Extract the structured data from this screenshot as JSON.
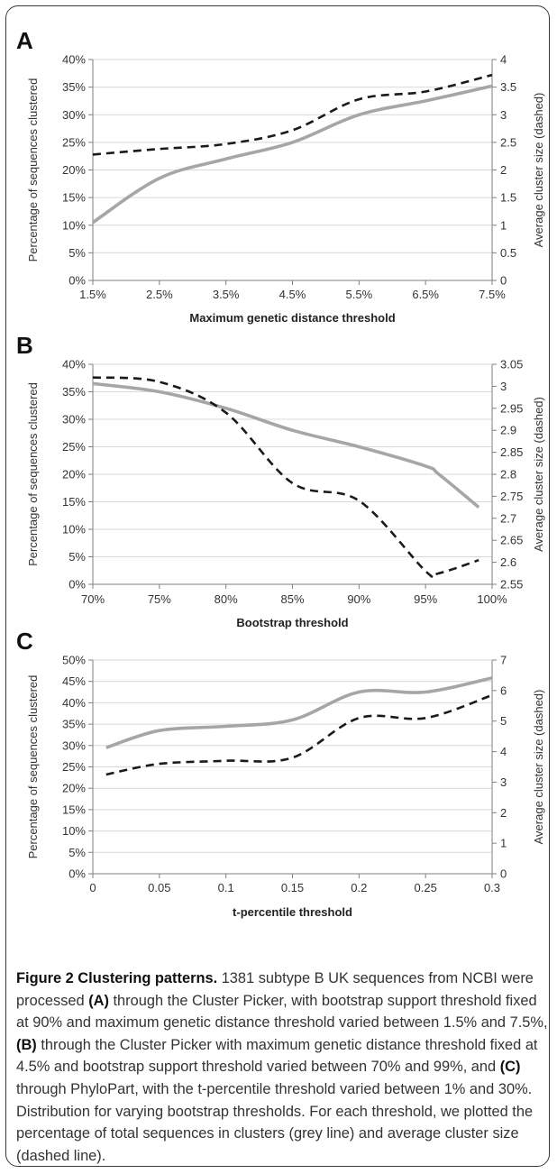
{
  "colors": {
    "grey_line": "#a6a6a6",
    "dashed_line": "#1a1a1a",
    "axis": "#7f7f7f",
    "grid": "#d9d9d9"
  },
  "chart_data": [
    {
      "panel_label": "A",
      "type": "line",
      "xlabel": "Maximum genetic distance threshold",
      "ylabel_left": "Percentage of sequences clustered",
      "ylabel_right": "Average cluster size (dashed)",
      "x": [
        1.5,
        2.5,
        3.5,
        4.5,
        5.5,
        6.5,
        7.5
      ],
      "x_ticks": [
        "1.5%",
        "2.5%",
        "3.5%",
        "4.5%",
        "5.5%",
        "6.5%",
        "7.5%"
      ],
      "y_left_ticks": [
        "0%",
        "5%",
        "10%",
        "15%",
        "20%",
        "25%",
        "30%",
        "35%",
        "40%"
      ],
      "y_right_ticks": [
        "0",
        "0.5",
        "1",
        "1.5",
        "2",
        "2.5",
        "3",
        "3.5",
        "4"
      ],
      "ylim_left": [
        0,
        40
      ],
      "ylim_right": [
        0,
        4
      ],
      "grid": true,
      "series": [
        {
          "axis": "left",
          "style": "solid",
          "values": [
            10.5,
            18.5,
            22.0,
            25.0,
            30.0,
            32.5,
            35.2
          ]
        },
        {
          "axis": "right",
          "style": "dashed",
          "values": [
            2.28,
            2.38,
            2.47,
            2.72,
            3.28,
            3.42,
            3.72
          ]
        }
      ]
    },
    {
      "panel_label": "B",
      "type": "line",
      "xlabel": "Bootstrap threshold",
      "ylabel_left": "Percentage of sequences clustered",
      "ylabel_right": "Average cluster size (dashed)",
      "x": [
        70,
        75,
        80,
        85,
        90,
        95,
        96,
        99
      ],
      "x_ticks": [
        "70%",
        "75%",
        "80%",
        "85%",
        "90%",
        "95%",
        "100%"
      ],
      "x_tick_values": [
        70,
        75,
        80,
        85,
        90,
        95,
        100
      ],
      "y_left_ticks": [
        "0%",
        "5%",
        "10%",
        "15%",
        "20%",
        "25%",
        "30%",
        "35%",
        "40%"
      ],
      "y_right_ticks": [
        "2.55",
        "2.6",
        "2.65",
        "2.7",
        "2.75",
        "2.8",
        "2.85",
        "2.9",
        "2.95",
        "3",
        "3.05"
      ],
      "ylim_left": [
        0,
        40
      ],
      "ylim_right": [
        2.55,
        3.05
      ],
      "grid": true,
      "series": [
        {
          "axis": "left",
          "style": "solid",
          "values": [
            36.5,
            35.0,
            32.0,
            28.0,
            25.0,
            21.5,
            20.0,
            14.0
          ]
        },
        {
          "axis": "right",
          "style": "dashed",
          "values": [
            3.02,
            3.01,
            2.94,
            2.78,
            2.74,
            2.58,
            2.575,
            2.605
          ]
        }
      ]
    },
    {
      "panel_label": "C",
      "type": "line",
      "xlabel": "t-percentile threshold",
      "ylabel_left": "Percentage of sequences clustered",
      "ylabel_right": "Average cluster size (dashed)",
      "x": [
        0.01,
        0.05,
        0.1,
        0.15,
        0.2,
        0.25,
        0.3
      ],
      "x_ticks": [
        "0",
        "0.05",
        "0.1",
        "0.15",
        "0.2",
        "0.25",
        "0.3"
      ],
      "x_tick_values": [
        0,
        0.05,
        0.1,
        0.15,
        0.2,
        0.25,
        0.3
      ],
      "y_left_ticks": [
        "0%",
        "5%",
        "10%",
        "15%",
        "20%",
        "25%",
        "30%",
        "35%",
        "40%",
        "45%",
        "50%"
      ],
      "y_right_ticks": [
        "0",
        "1",
        "2",
        "3",
        "4",
        "5",
        "6",
        "7"
      ],
      "ylim_left": [
        0,
        50
      ],
      "ylim_right": [
        0,
        7
      ],
      "grid": true,
      "series": [
        {
          "axis": "left",
          "style": "solid",
          "values": [
            29.5,
            33.5,
            34.5,
            36.0,
            42.5,
            42.5,
            45.8
          ]
        },
        {
          "axis": "right",
          "style": "dashed",
          "values": [
            3.25,
            3.6,
            3.7,
            3.8,
            5.1,
            5.1,
            5.85
          ]
        }
      ]
    }
  ],
  "caption": {
    "title": "Figure 2 Clustering patterns.",
    "t1": " 1381 subtype B UK sequences from NCBI were processed ",
    "a": "(A)",
    "t2": " through the Cluster Picker, with bootstrap support threshold fixed at 90% and maximum genetic distance threshold varied between 1.5% and 7.5%, ",
    "b": "(B)",
    "t3": " through the Cluster Picker with maximum genetic distance threshold fixed at 4.5% and bootstrap support threshold varied between 70% and 99%, and ",
    "c": "(C)",
    "t4": " through PhyloPart, with the t-percentile threshold varied between 1% and 30%. Distribution for varying bootstrap thresholds. For each threshold, we plotted the percentage of total sequences in clusters (grey line) and average cluster size (dashed line)."
  }
}
